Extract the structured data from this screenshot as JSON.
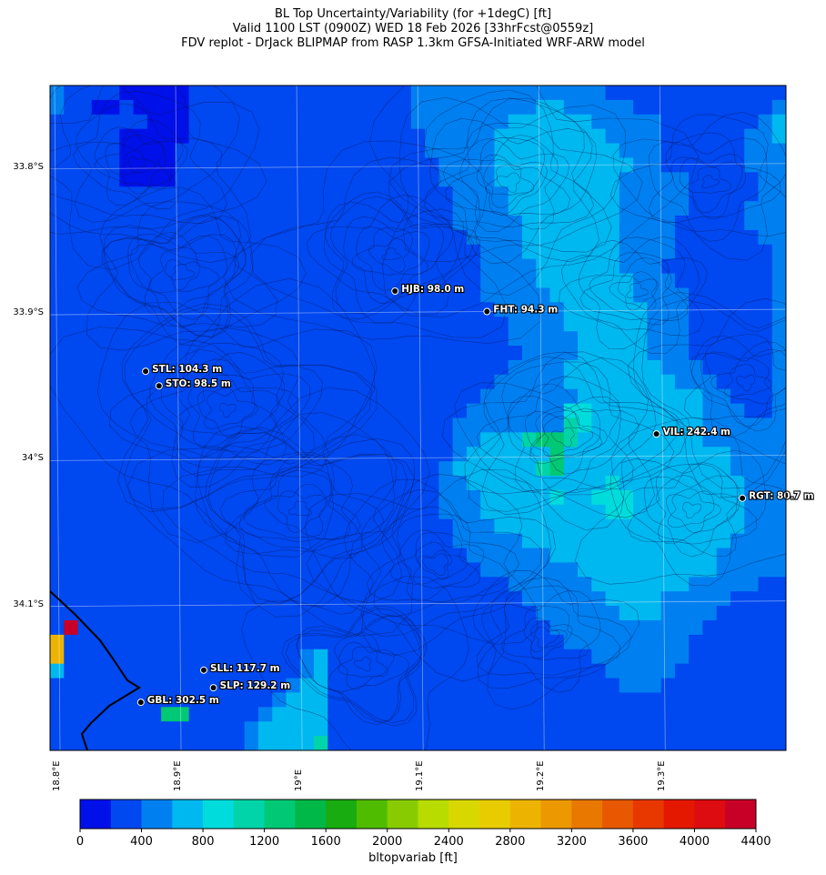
{
  "title": {
    "line1": "BL Top Uncertainty/Variability (for +1degC) [ft]",
    "line2": "Valid 1100 LST (0900Z) WED 18 Feb 2026 [33hrFcst@0559z]",
    "line3": "FDV replot - DrJack BLIPMAP from RASP 1.3km GFSA-Initiated WRF-ARW model"
  },
  "axes": {
    "lat_labels": [
      {
        "value": -33.8,
        "text": "33.8°S"
      },
      {
        "value": -33.9,
        "text": "33.9°S"
      },
      {
        "value": -34.0,
        "text": "34°S"
      },
      {
        "value": -34.1,
        "text": "34.1°S"
      }
    ],
    "lon_labels": [
      {
        "value": 18.8,
        "text": "18.8°E"
      },
      {
        "value": 18.9,
        "text": "18.9°E"
      },
      {
        "value": 19.0,
        "text": "19°E"
      },
      {
        "value": 19.1,
        "text": "19.1°E"
      },
      {
        "value": 19.2,
        "text": "19.2°E"
      },
      {
        "value": 19.3,
        "text": "19.3°E"
      }
    ],
    "lon_range": [
      18.794,
      19.402
    ],
    "lat_range": [
      -34.2,
      -33.744
    ]
  },
  "stations": [
    {
      "id": "HJB",
      "label": "HJB: 98.0 m",
      "lon": 19.079,
      "lat": -33.885
    },
    {
      "id": "FHT",
      "label": "FHT: 94.3 m",
      "lon": 19.155,
      "lat": -33.899
    },
    {
      "id": "STL",
      "label": "STL: 104.3 m",
      "lon": 18.873,
      "lat": -33.94
    },
    {
      "id": "STO",
      "label": "STO: 98.5 m",
      "lon": 18.884,
      "lat": -33.95
    },
    {
      "id": "VIL",
      "label": "VIL: 242.4 m",
      "lon": 19.295,
      "lat": -33.983
    },
    {
      "id": "RGT",
      "label": "RGT: 80.7 m",
      "lon": 19.366,
      "lat": -34.027
    },
    {
      "id": "SLL",
      "label": "SLL: 117.7 m",
      "lon": 18.921,
      "lat": -34.145
    },
    {
      "id": "SLP",
      "label": "SLP: 129.2 m",
      "lon": 18.929,
      "lat": -34.157
    },
    {
      "id": "GBL",
      "label": "GBL: 302.5 m",
      "lon": 18.869,
      "lat": -34.167
    }
  ],
  "colorbar": {
    "label": "bltopvariab [ft]",
    "min": 0,
    "max": 4400,
    "step": 200,
    "tick_labels": [
      "0",
      "400",
      "800",
      "1200",
      "1600",
      "2000",
      "2400",
      "2800",
      "3200",
      "3600",
      "4000",
      "4400"
    ],
    "colors": [
      "#0010e8",
      "#0048f0",
      "#0080f0",
      "#00b8f0",
      "#00dcdc",
      "#00d4a8",
      "#00c874",
      "#00b848",
      "#18ac10",
      "#50bc00",
      "#88cc00",
      "#b8dc00",
      "#d8d800",
      "#e8cc00",
      "#ecb400",
      "#ec9800",
      "#e87800",
      "#e85800",
      "#e83800",
      "#e41800",
      "#dc0c10",
      "#c80028"
    ]
  },
  "field_colors": {
    "a": "#0010e8",
    "b": "#0048f0",
    "c": "#0080f0",
    "d": "#00b8f0",
    "e": "#00dcdc",
    "f": "#00d4a8",
    "g": "#00c874",
    "h": "#00b848",
    "y": "#ecb400",
    "r": "#c80028"
  },
  "field_grid": [
    "cbbbbaaaaabbbbbbbbbbbbbbbbccccccccccccccbbbbbbbbbbbbb",
    "cbbaabaaaabbbbbbbbbbbbbbbbcccccccccddcccccbbbbbbbbbbc",
    "bbbbbbbaaabbbbbbbbbbbbbbbbcccccccddddddcccccbbbbbbbcd",
    "bbbbbaaaaabbbbbbbbbbbbbbbbbcccccddddddddccccbbbbbbccd",
    "bbbbbaaaabbbbbbbbbbbbbbbbbbcccccdddddddddcccbbbbbbccc",
    "bbbbbaaaabbbbbbbbbbbbbbbbbbbccccddddddddddccbbbbbbccc",
    "bbbbbaaaabbbbbbbbbbbbbbbbbbbccccdddddddddcccccbbbbbcc",
    "bbbbbbbbbbbbbbbbbbbbbbbbbbbbbccccddddddddcccccbbbbbcc",
    "bbbbbbbbbbbbbbbbbbbbbbbbbbbbbccccddddddddcccccbbbbccc",
    "bbbbbbbbbbbbbbbbbbbbbbbbbbbbbcccccdddddddccccbbbbbccc",
    "bbbbbbbbbbbbbbbbbbbbbbbbbbbbbbccccdddddddccccbbbbbbcc",
    "bbbbbbbbbbbbbbbbbbbbbbbbbbbbbbbcccdddddddccccbbbbbbbc",
    "bbbbbbbbbbbbbbbbbbbbbbbbbbbbbbbccccddddddcccbbbbbbbbc",
    "bbbbbbbbbbbbbbbbbbbbbbbbbbbbbbbccccdddddddcccbbbbbbbc",
    "bbbbbbbbbbbbbbbbbbbbbbbbbbbbbbbcccccddddddccccbbbbbbc",
    "bbbbbbbbbbbbbbbbbbbbbbbbbbbbbbbbcccccddddddcccbbbbbbc",
    "bbbbbbbbbbbbbbbbbbbbbbbbbbbbbbbbbccccddddddcccbbbbbbc",
    "bbbbbbbbbbbbbbbbbbbbbbbbbbbbbbbbbcccccdddddcccbbbbbbc",
    "bbbbbbbbbbbbbbbbbbbbbbbbbbbbbbbbbbccccdddddcccbbbbbbc",
    "bbbbbbbbbbbbbbbbbbbbbbbbbbbbbbbbbccccdddddddcccbbbbbc",
    "bbbbbbbbbbbbbbbbbbbbbbbbbbbbbbbbcccccddddddddcccbbbbc",
    "bbbbbbbbbbbbbbbbbbbbbbbbbbbbbbbcccccccdddddddddccbbbc",
    "bbbbbbbbbbbbbbbbbbbbbbbbbbbbbbccccccceeddddddddcccbbc",
    "bbbbbbbbbbbbbbbbbbbbbbbbbbbbbccccccccfeddddddddcccccc",
    "bbbbbbbbbbbbbbbbbbbbbbbbbbbbbccdddfggfdddddddddcccccc",
    "bbbbbbbbbbbbbbbbbbbbbbbbbbbbbcddddddgddddddddddddcccc",
    "bbbbbbbbbbbbbbbbbbbbbbbbbbbbcddddddfgddddddddddddcccc",
    "bbbbbbbbbbbbbbbbbbbbbbbbbbbbccddddddddddedddddddddccc",
    "bbbbbbbbbbbbbbbbbbbbbbbbbbbbcccdddddeddeeeddddddddccc",
    "bbbbbbbbbbbbbbbbbbbbbbbbbbbbcccdddddddddeeddddddddccc",
    "bbbbbbbbbbbbbbbbbbbbbbbbbbbbbcccddddddddddddddddddccc",
    "bbbbbbbbbbbbbbbbbbbbbbbbbbbbbcccccdddddddddddddddcccc",
    "bbbbbbbbbbbbbbbbbbbbbbbbbbbbbbccccccddddddddddddccccc",
    "bbbbbbbbbbbbbbbbbbbbbbbbbbbbbbbcccccccddddddddddccccc",
    "bbbbbbbbbbbbbbbbbbbbbbbbbbbbbbbbbccccccdddddddcccccbb",
    "bbbbbbbbbbbbbbbbbbbbbbbbbbbbbbbbbbccccccddddcccccbbbb",
    "bbbbbbbbbbbbbbbbbbbbbbbbbbbbbbbbbbbccccccdddccccbbbbb",
    "brbbbbbbbbbbbbbbbbbbbbbbbbbbbbbbbbbbcccccccccccbbbbbb",
    "ybbbbbbbbbbbbbbbbbbbbbbbbbbbbbbbbbbbbcccccccccbbbbbbb",
    "ybbbbbbbbbbbbbbbbbcdbbbbbbbbbbbbbbbbbbbcccccccbbbbbbb",
    "dbbbbbbbbbbbbbbbbbcdbbbbbbbbbbbbbbbbbbbbcccccbbbbbbbb",
    "bbbbbbbbbbbbbbbbbcddbbbbbbbbbbbbbbbbbbbbbcccbbbbbbbbb",
    "bbbbbbbbbbbbbbbbcdddbbbbbbbbbbbbbbbbbbbbbbbbbbbbbbbbb",
    "bbbbbbbbggbbbbbcddddbbbbbbbbbbbbbbbbbbbbbbbbbbbbbbbbb",
    "bbbbbbbbbbbbbbcdddddbbbbbbbbbbbbbbbbbbbbbbbbbbbbbbbbb",
    "bbbbbbbbbbbbbbcddddfbbbbbbbbbbbbbbbbbbbbbbbbbbbbbbbbb"
  ]
}
